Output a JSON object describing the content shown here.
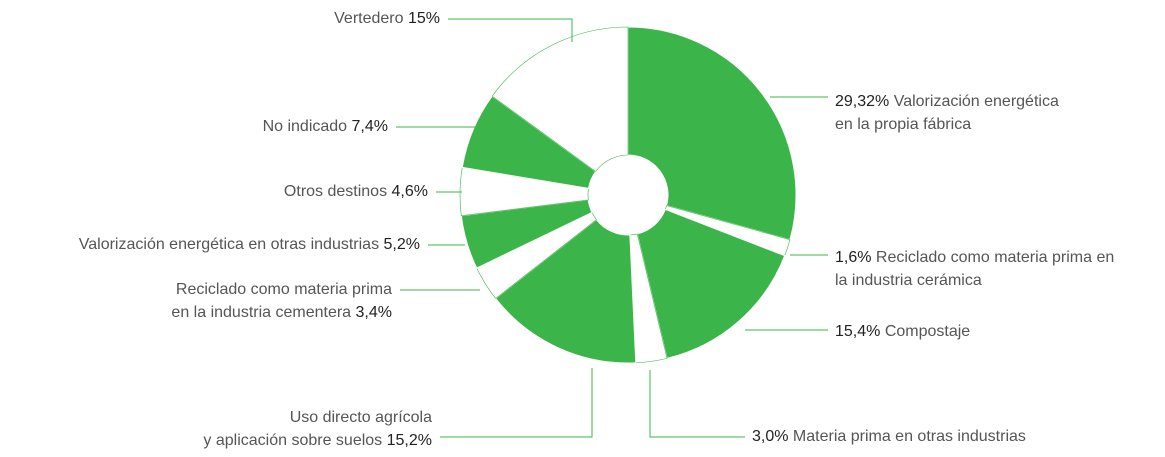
{
  "chart_data": {
    "type": "pie",
    "categories": [
      [
        "Valorización energética",
        "en la propia fábrica"
      ],
      [
        "Reciclado como materia prima en",
        "la industria cerámica"
      ],
      [
        "Compostaje"
      ],
      [
        "Materia prima en otras industrias"
      ],
      [
        "Uso directo agrícola",
        "y aplicación sobre suelos"
      ],
      [
        "Reciclado como materia prima",
        "en la industria cementera"
      ],
      [
        "Valorización energética en otras industrias"
      ],
      [
        "Otros destinos"
      ],
      [
        "No indicado"
      ],
      [
        "Vertedero"
      ]
    ],
    "values": [
      29.32,
      1.6,
      15.4,
      3.0,
      15.2,
      3.4,
      5.2,
      4.6,
      7.4,
      15
    ],
    "value_labels": [
      "29,32%",
      "1,6%",
      "15,4%",
      "3,0%",
      "15,2%",
      "3,4%",
      "5,2%",
      "4,6%",
      "7,4%",
      "15%"
    ],
    "colors": [
      "#3bb54a",
      "#ffffff",
      "#3bb54a",
      "#ffffff",
      "#3bb54a",
      "#ffffff",
      "#3bb54a",
      "#ffffff",
      "#3bb54a",
      "#ffffff"
    ]
  }
}
